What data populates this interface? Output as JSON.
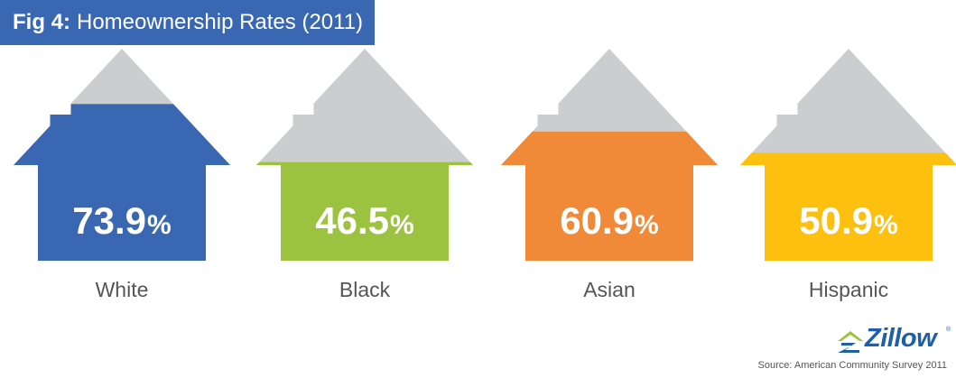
{
  "title": {
    "prefix": "Fig 4:",
    "text": "Homeownership Rates (2011)"
  },
  "colors": {
    "house_gray": "#cbcdce",
    "title_bg": "#3a67b1",
    "white": "#3a67b1",
    "black": "#9bc33f",
    "asian": "#f08a38",
    "hispanic": "#fdc00f"
  },
  "chart_data": {
    "type": "bar",
    "title": "Homeownership Rates (2011)",
    "categories": [
      "White",
      "Black",
      "Asian",
      "Hispanic"
    ],
    "values": [
      73.9,
      46.5,
      60.9,
      50.9
    ],
    "value_labels": [
      "73.9",
      "46.5",
      "60.9",
      "50.9"
    ],
    "unit": "%",
    "ylim": [
      0,
      100
    ],
    "grid": false
  },
  "logo": {
    "text": "Zillow",
    "mark": "®"
  },
  "source": "Source: American Community Survey 2011"
}
